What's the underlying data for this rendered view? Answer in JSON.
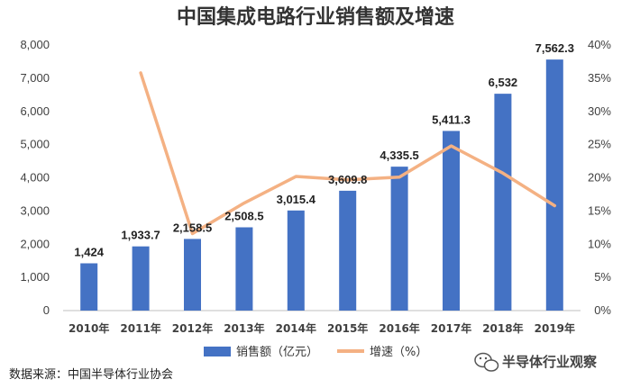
{
  "chart_data": {
    "type": "bar+line",
    "title": "中国集成电路行业销售额及增速",
    "categories": [
      "2010年",
      "2011年",
      "2012年",
      "2013年",
      "2014年",
      "2015年",
      "2016年",
      "2017年",
      "2018年",
      "2019年"
    ],
    "series": [
      {
        "name": "销售额（亿元）",
        "type": "bar",
        "axis": "left",
        "values": [
          1424,
          1933.7,
          2158.5,
          2508.5,
          3015.4,
          3609.8,
          4335.5,
          5411.3,
          6532,
          7562.3
        ],
        "labels": [
          "1,424",
          "1,933.7",
          "2,158.5",
          "2,508.5",
          "3,015.4",
          "3,609.8",
          "4,335.5",
          "5,411.3",
          "6,532",
          "7,562.3"
        ],
        "color": "#4472c4"
      },
      {
        "name": "增速（%）",
        "type": "line",
        "axis": "right",
        "values": [
          null,
          35.8,
          11.6,
          16.2,
          20.2,
          19.7,
          20.1,
          24.8,
          20.7,
          15.8
        ],
        "color": "#f4b183"
      }
    ],
    "y_left": {
      "ylim": [
        0,
        8000
      ],
      "ticks": [
        "0",
        "1,000",
        "2,000",
        "3,000",
        "4,000",
        "5,000",
        "6,000",
        "7,000",
        "8,000"
      ]
    },
    "y_right": {
      "ylim": [
        0,
        40
      ],
      "ticks": [
        "0%",
        "5%",
        "10%",
        "15%",
        "20%",
        "25%",
        "30%",
        "35%",
        "40%"
      ]
    },
    "grid": false,
    "legend": "bottom"
  },
  "source_note": "数据来源：中国半导体行业协会",
  "watermark": "半导体行业观察",
  "watermark_icon": "wechat-icon"
}
